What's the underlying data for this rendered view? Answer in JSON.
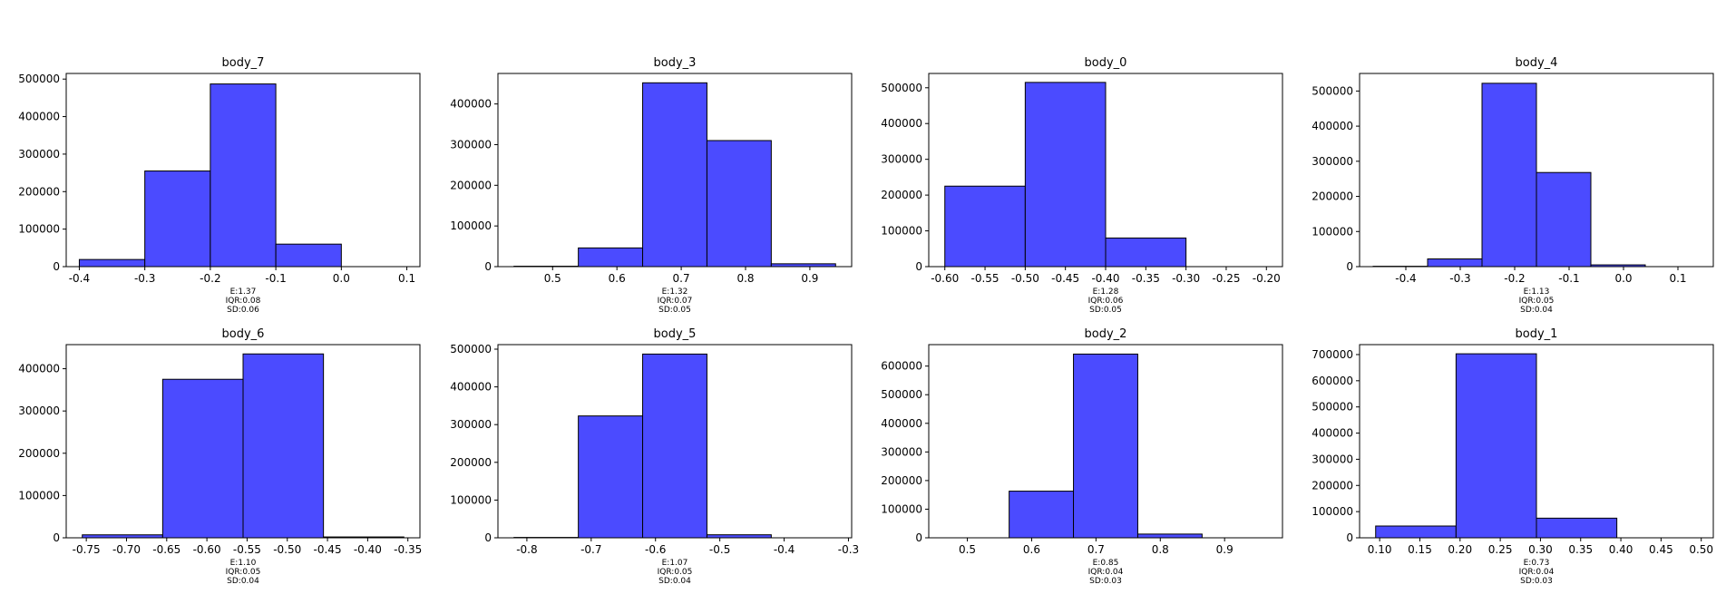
{
  "bar_color": "#4b4bff",
  "edge_color": "#000000",
  "chart_data": [
    {
      "type": "bar",
      "title": "body_7",
      "bin_edges": [
        -0.4,
        -0.3,
        -0.2,
        -0.1,
        0.0,
        0.1
      ],
      "values": [
        19000,
        255000,
        487000,
        60000,
        0
      ],
      "xlim": [
        -0.42,
        0.12
      ],
      "ylim": [
        0,
        515000
      ],
      "xticks": [
        "-0.4",
        "-0.3",
        "-0.2",
        "-0.1",
        "0.0",
        "0.1"
      ],
      "yticks": [
        "0",
        "100000",
        "200000",
        "300000",
        "400000",
        "500000"
      ],
      "stats": [
        "E:1.37",
        "IQR:0.08",
        "SD:0.06"
      ]
    },
    {
      "type": "bar",
      "title": "body_3",
      "bin_edges": [
        0.44,
        0.54,
        0.64,
        0.74,
        0.84,
        0.94
      ],
      "values": [
        1000,
        46000,
        452000,
        310000,
        7000
      ],
      "xlim": [
        0.415,
        0.965
      ],
      "ylim": [
        0,
        475000
      ],
      "xticks": [
        "0.5",
        "0.6",
        "0.7",
        "0.8",
        "0.9"
      ],
      "yticks": [
        "0",
        "100000",
        "200000",
        "300000",
        "400000"
      ],
      "stats": [
        "E:1.32",
        "IQR:0.07",
        "SD:0.05"
      ]
    },
    {
      "type": "bar",
      "title": "body_0",
      "bin_edges": [
        -0.6,
        -0.5,
        -0.4,
        -0.3,
        -0.2
      ],
      "values": [
        225000,
        515000,
        80000,
        0
      ],
      "xlim": [
        -0.62,
        -0.18
      ],
      "ylim": [
        0,
        540000
      ],
      "xticks": [
        "-0.60",
        "-0.55",
        "-0.50",
        "-0.45",
        "-0.40",
        "-0.35",
        "-0.30",
        "-0.25",
        "-0.20"
      ],
      "yticks": [
        "0",
        "100000",
        "200000",
        "300000",
        "400000",
        "500000"
      ],
      "stats": [
        "E:1.28",
        "IQR:0.06",
        "SD:0.05"
      ]
    },
    {
      "type": "bar",
      "title": "body_4",
      "bin_edges": [
        -0.46,
        -0.36,
        -0.26,
        -0.16,
        -0.06,
        0.04,
        0.14
      ],
      "values": [
        1000,
        22000,
        522000,
        268000,
        5000,
        0
      ],
      "xlim": [
        -0.485,
        0.165
      ],
      "ylim": [
        0,
        550000
      ],
      "xticks": [
        "-0.4",
        "-0.3",
        "-0.2",
        "-0.1",
        "0.0",
        "0.1"
      ],
      "yticks": [
        "0",
        "100000",
        "200000",
        "300000",
        "400000",
        "500000"
      ],
      "stats": [
        "E:1.13",
        "IQR:0.05",
        "SD:0.04"
      ]
    },
    {
      "type": "bar",
      "title": "body_6",
      "bin_edges": [
        -0.755,
        -0.655,
        -0.555,
        -0.455,
        -0.355
      ],
      "values": [
        7000,
        375000,
        435000,
        2000
      ],
      "xlim": [
        -0.775,
        -0.335
      ],
      "ylim": [
        0,
        457000
      ],
      "xticks": [
        "-0.75",
        "-0.70",
        "-0.65",
        "-0.60",
        "-0.55",
        "-0.50",
        "-0.45",
        "-0.40",
        "-0.35"
      ],
      "yticks": [
        "0",
        "100000",
        "200000",
        "300000",
        "400000"
      ],
      "stats": [
        "E:1.10",
        "IQR:0.05",
        "SD:0.04"
      ]
    },
    {
      "type": "bar",
      "title": "body_5",
      "bin_edges": [
        -0.82,
        -0.72,
        -0.62,
        -0.52,
        -0.42,
        -0.32
      ],
      "values": [
        1000,
        323000,
        487000,
        8000,
        0
      ],
      "xlim": [
        -0.845,
        -0.295
      ],
      "ylim": [
        0,
        512000
      ],
      "xticks": [
        "-0.8",
        "-0.7",
        "-0.6",
        "-0.5",
        "-0.4",
        "-0.3"
      ],
      "yticks": [
        "0",
        "100000",
        "200000",
        "300000",
        "400000",
        "500000"
      ],
      "stats": [
        "E:1.07",
        "IQR:0.05",
        "SD:0.04"
      ]
    },
    {
      "type": "bar",
      "title": "body_2",
      "bin_edges": [
        0.465,
        0.565,
        0.665,
        0.765,
        0.865,
        0.965
      ],
      "values": [
        0,
        163000,
        642000,
        13000,
        0
      ],
      "xlim": [
        0.44,
        0.99
      ],
      "ylim": [
        0,
        675000
      ],
      "xticks": [
        "0.5",
        "0.6",
        "0.7",
        "0.8",
        "0.9"
      ],
      "yticks": [
        "0",
        "100000",
        "200000",
        "300000",
        "400000",
        "500000",
        "600000"
      ],
      "stats": [
        "E:0.85",
        "IQR:0.04",
        "SD:0.03"
      ]
    },
    {
      "type": "bar",
      "title": "body_1",
      "bin_edges": [
        0.095,
        0.195,
        0.295,
        0.395,
        0.495
      ],
      "values": [
        45000,
        703000,
        75000,
        0
      ],
      "xlim": [
        0.075,
        0.515
      ],
      "ylim": [
        0,
        738000
      ],
      "xticks": [
        "0.10",
        "0.15",
        "0.20",
        "0.25",
        "0.30",
        "0.35",
        "0.40",
        "0.45",
        "0.50"
      ],
      "yticks": [
        "0",
        "100000",
        "200000",
        "300000",
        "400000",
        "500000",
        "600000",
        "700000"
      ],
      "stats": [
        "E:0.73",
        "IQR:0.04",
        "SD:0.03"
      ]
    }
  ]
}
